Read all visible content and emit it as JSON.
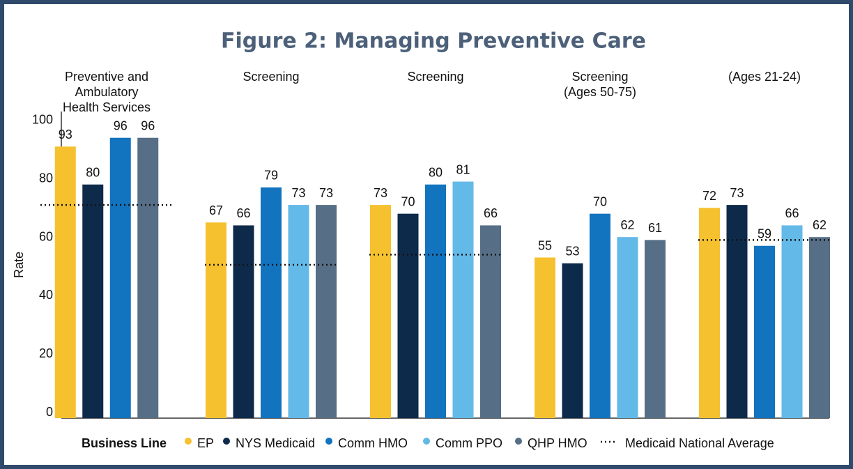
{
  "chart_data": {
    "type": "bar",
    "title": "Figure 2: Managing Preventive Care",
    "y_label": "Rate",
    "categories": [
      [
        "Preventive and",
        "Ambulatory",
        "Health Services"
      ],
      [
        "Screening"
      ],
      [
        "Screening"
      ],
      [
        "Screening",
        "(Ages 50-75)"
      ],
      [
        "(Ages 21-24)"
      ]
    ],
    "legend_title": "Business Line",
    "series": [
      {
        "name": "EP",
        "color": "#f6c12f",
        "values": [
          93,
          67,
          73,
          55,
          72
        ]
      },
      {
        "name": "NYS Medicaid",
        "color": "#0e2a4b",
        "values": [
          80,
          66,
          70,
          53,
          73
        ]
      },
      {
        "name": "Comm HMO",
        "color": "#1273bf",
        "values": [
          96,
          79,
          80,
          70,
          59
        ]
      },
      {
        "name": "Comm PPO",
        "color": "#63b9e7",
        "values": [
          null,
          73,
          81,
          62,
          66
        ]
      },
      {
        "name": "QHP HMO",
        "color": "#566e86",
        "values": [
          96,
          73,
          66,
          61,
          62
        ]
      }
    ],
    "reference": {
      "name": "Medicaid National Average",
      "color": "#111111",
      "values": [
        73,
        52.5,
        56,
        null,
        61
      ]
    },
    "ylim": [
      0,
      105
    ],
    "yticks": [
      0,
      20,
      40,
      60,
      80,
      100
    ],
    "legend": "bottom"
  }
}
